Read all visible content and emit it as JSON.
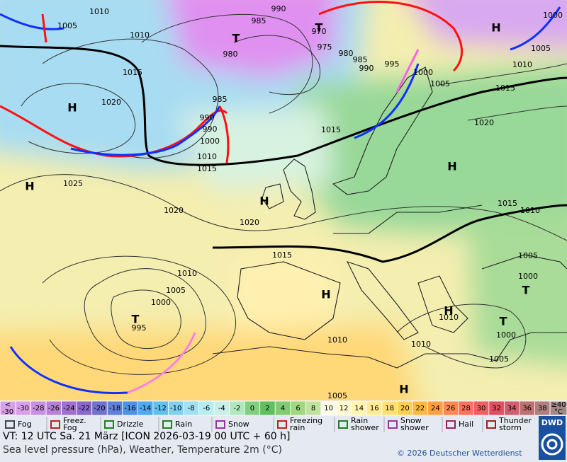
{
  "map": {
    "isobar_labels": [
      1010,
      1005,
      1010,
      990,
      985,
      970,
      975,
      980,
      980,
      985,
      990,
      995,
      1000,
      1005,
      1000,
      1005,
      1010,
      1015,
      1015,
      1020,
      1020,
      985,
      990,
      990,
      1000,
      1010,
      1015,
      1015,
      1025,
      1020,
      1020,
      1015,
      1015,
      1010,
      1005,
      1000,
      1010,
      1005,
      1000,
      995,
      1010,
      1010,
      1010,
      1000,
      1005,
      1005
    ],
    "centers": [
      "H",
      "T",
      "T",
      "H",
      "H",
      "H",
      "H",
      "H",
      "T",
      "T",
      "H",
      "T",
      "H"
    ]
  },
  "scale": {
    "low_label": "<\n-30",
    "high_label": "≥40\n°C",
    "ticks": [
      -30,
      -28,
      -26,
      -24,
      -22,
      -20,
      -18,
      -16,
      -14,
      -12,
      -10,
      -8,
      -6,
      -4,
      -2,
      0,
      2,
      4,
      6,
      8,
      10,
      12,
      14,
      16,
      18,
      20,
      22,
      24,
      26,
      28,
      30,
      32,
      34,
      36,
      38
    ],
    "colors": [
      "#d8a0e8",
      "#c890e0",
      "#b880d8",
      "#a070d0",
      "#8868c8",
      "#7070d0",
      "#6080e0",
      "#5090e8",
      "#50a8f0",
      "#60c0f0",
      "#80d0f0",
      "#a0e0f0",
      "#b8ecf0",
      "#c8f0e8",
      "#b0e8c0",
      "#80d080",
      "#60c060",
      "#80cc70",
      "#a0d880",
      "#c0e4a0",
      "#fbfbe8",
      "#fffad0",
      "#fff4b0",
      "#ffec90",
      "#ffe070",
      "#ffd050",
      "#ffb840",
      "#ffa040",
      "#ff8850",
      "#ff7060",
      "#f06060",
      "#e05060",
      "#d06070",
      "#c07070",
      "#b08080"
    ]
  },
  "legend": [
    "Fog",
    "Freez.\nFog",
    "Drizzle",
    "Rain",
    "Snow",
    "Freezing\nrain",
    "Rain\nshower",
    "Snow\nshower",
    "Hail",
    "Thunder\nstorm"
  ],
  "logo": "DWD",
  "footer": {
    "valid_time": "VT: 12 UTC Sa.  21 März [ICON 2026-03-19  00 UTC + 60 h]",
    "description": "Sea level pressure (hPa), Weather, Temperature 2m (°C)",
    "copyright": "© 2026 Deutscher Wetterdienst"
  }
}
